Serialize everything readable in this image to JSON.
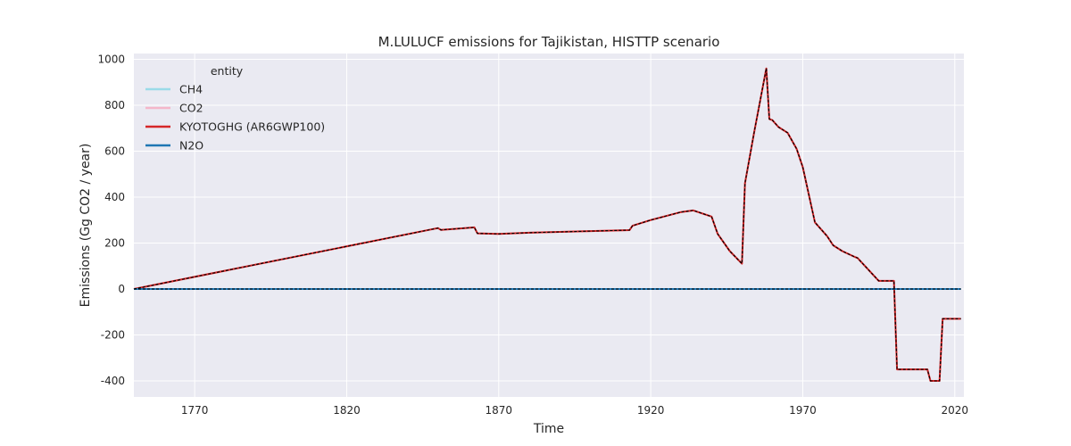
{
  "chart_data": {
    "type": "line",
    "title": "M.LULUCF emissions for Tajikistan, HISTTP scenario",
    "xlabel": "Time",
    "ylabel": "Emissions (Gg CO2 / year)",
    "xlim": [
      1750,
      2023
    ],
    "ylim": [
      -470,
      1025
    ],
    "xticks": [
      1770,
      1820,
      1870,
      1920,
      1970,
      2020
    ],
    "yticks": [
      -400,
      -200,
      0,
      200,
      400,
      600,
      800,
      1000
    ],
    "grid": true,
    "legend": {
      "title": "entity",
      "placement": "top-left"
    },
    "series": [
      {
        "name": "CH4",
        "color": "#9adbe8",
        "x": [
          1750,
          2022
        ],
        "y": [
          0,
          0
        ]
      },
      {
        "name": "CO2",
        "color": "#f4b6c9",
        "x": [
          1750,
          1850,
          1851,
          1862,
          1863,
          1870,
          1880,
          1900,
          1913,
          1914,
          1920,
          1930,
          1934,
          1940,
          1942,
          1946,
          1950,
          1951,
          1954,
          1958,
          1959,
          1960,
          1962,
          1965,
          1968,
          1970,
          1974,
          1978,
          1980,
          1983,
          1987,
          1988,
          1995,
          2000,
          2001,
          2011,
          2012,
          2015,
          2016,
          2022
        ],
        "y": [
          0,
          265,
          257,
          268,
          242,
          240,
          245,
          252,
          256,
          275,
          300,
          335,
          342,
          315,
          240,
          165,
          110,
          460,
          680,
          960,
          740,
          735,
          705,
          680,
          610,
          530,
          290,
          230,
          190,
          165,
          140,
          135,
          35,
          35,
          -350,
          -350,
          -400,
          -400,
          -130,
          -130
        ]
      },
      {
        "name": "KYOTOGHG (AR6GWP100)",
        "color": "#d62728",
        "x": [
          1750,
          1850,
          1851,
          1862,
          1863,
          1870,
          1880,
          1900,
          1913,
          1914,
          1920,
          1930,
          1934,
          1940,
          1942,
          1946,
          1950,
          1951,
          1954,
          1958,
          1959,
          1960,
          1962,
          1965,
          1968,
          1970,
          1974,
          1978,
          1980,
          1983,
          1987,
          1988,
          1995,
          2000,
          2001,
          2011,
          2012,
          2015,
          2016,
          2022
        ],
        "y": [
          0,
          265,
          257,
          268,
          242,
          240,
          245,
          252,
          256,
          275,
          300,
          335,
          342,
          315,
          240,
          165,
          110,
          460,
          680,
          960,
          740,
          735,
          705,
          680,
          610,
          530,
          290,
          230,
          190,
          165,
          140,
          135,
          35,
          35,
          -350,
          -350,
          -400,
          -400,
          -130,
          -130
        ]
      },
      {
        "name": "N2O",
        "color": "#1f77b4",
        "x": [
          1750,
          2022
        ],
        "y": [
          0,
          0
        ]
      }
    ]
  }
}
